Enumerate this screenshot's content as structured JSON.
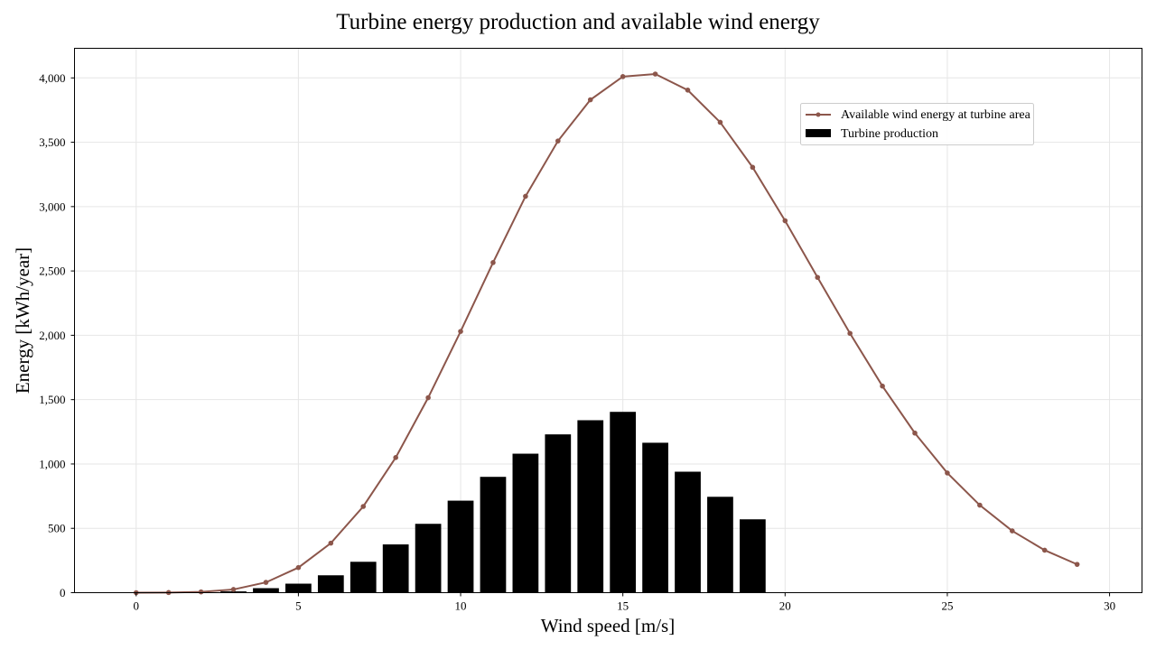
{
  "chart_data": {
    "type": "bar",
    "title": "Turbine energy production and available wind energy",
    "xlabel": "Wind speed [m/s]",
    "ylabel": "Energy [kWh/year]",
    "xlim": [
      -1.9,
      31.0
    ],
    "ylim": [
      0,
      4230
    ],
    "xticks": [
      0,
      5,
      10,
      15,
      20,
      25,
      30
    ],
    "xtick_labels": [
      "0",
      "5",
      "10",
      "15",
      "20",
      "25",
      "30"
    ],
    "yticks": [
      0,
      500,
      1000,
      1500,
      2000,
      2500,
      3000,
      3500,
      4000
    ],
    "ytick_labels": [
      "0",
      "500",
      "1,000",
      "1,500",
      "2,000",
      "2,500",
      "3,000",
      "3,500",
      "4,000"
    ],
    "grid": true,
    "legend_position": "top-right",
    "series": [
      {
        "name": "Available wind energy at turbine area",
        "type": "line",
        "color": "#8c564b",
        "marker": "circle",
        "x": [
          0,
          1,
          2,
          3,
          4,
          5,
          6,
          7,
          8,
          9,
          10,
          11,
          12,
          13,
          14,
          15,
          16,
          17,
          18,
          19,
          20,
          21,
          22,
          23,
          24,
          25,
          26,
          27,
          28,
          29
        ],
        "y": [
          0,
          1,
          6,
          25,
          80,
          195,
          385,
          670,
          1050,
          1515,
          2030,
          2565,
          3080,
          3510,
          3830,
          4010,
          4030,
          3905,
          3655,
          3305,
          2890,
          2450,
          2015,
          1605,
          1240,
          930,
          680,
          480,
          330,
          220
        ]
      },
      {
        "name": "Turbine production",
        "type": "bar",
        "color": "#000000",
        "x": [
          3,
          4,
          5,
          6,
          7,
          8,
          9,
          10,
          11,
          12,
          13,
          14,
          15,
          16,
          17,
          18,
          19
        ],
        "y": [
          10,
          35,
          70,
          135,
          240,
          375,
          535,
          715,
          900,
          1080,
          1230,
          1340,
          1405,
          1165,
          940,
          745,
          570
        ]
      }
    ]
  }
}
